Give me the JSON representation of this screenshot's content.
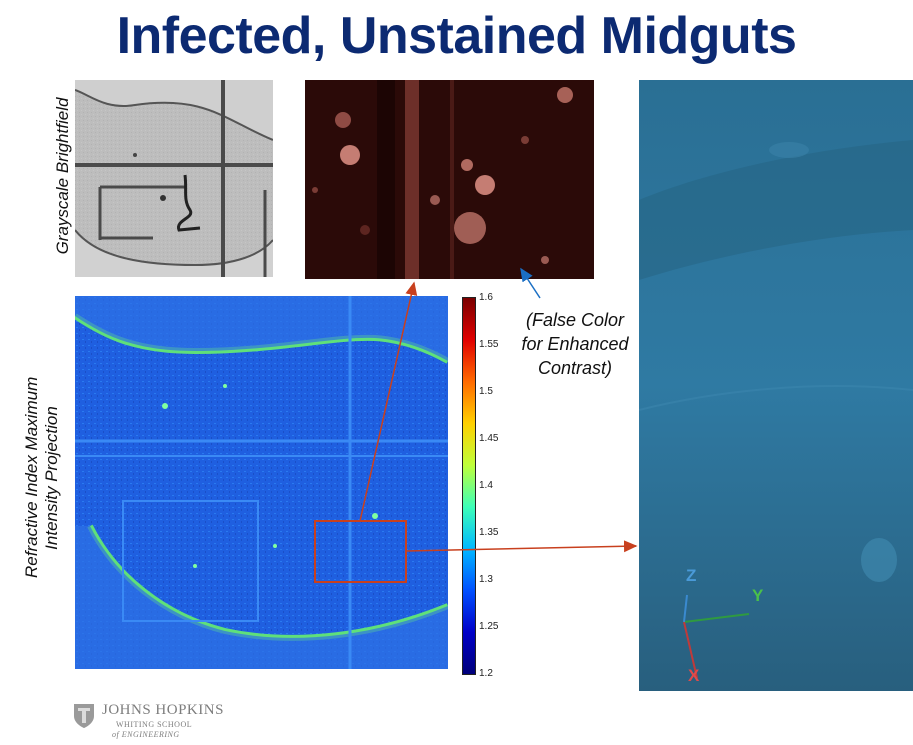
{
  "title": "Infected, Unstained Midguts",
  "labels": {
    "grayscale": "Grayscale Brightfield",
    "ri_line1": "Refractive Index Maximum",
    "ri_line2": "Intensity Projection"
  },
  "note": {
    "line1": "(False Color",
    "line2": "for Enhanced",
    "line3": "Contrast)"
  },
  "colorbar": {
    "ticks": [
      "1.6",
      "1.55",
      "1.5",
      "1.45",
      "1.4",
      "1.35",
      "1.3",
      "1.25",
      "1.2"
    ]
  },
  "axes3d": {
    "x": "X",
    "y": "Y",
    "z": "Z"
  },
  "logo": {
    "name": "JOHNS HOPKINS",
    "school_line1": "WHITING SCHOOL",
    "school_line2": "of ENGINEERING"
  },
  "colors": {
    "title": "#0c2a72",
    "arrow_red": "#c8401e",
    "arrow_blue": "#1b6fc4",
    "axis_x": "#e04040",
    "axis_y": "#40c040",
    "axis_z": "#4a9ad8"
  }
}
